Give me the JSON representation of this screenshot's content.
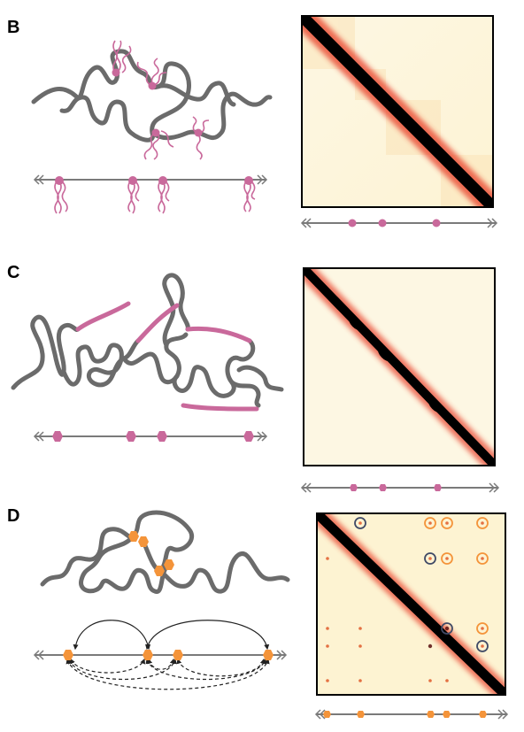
{
  "figure": {
    "panels": [
      {
        "label": "B"
      },
      {
        "label": "C"
      },
      {
        "label": "D"
      }
    ]
  },
  "colors": {
    "polymer": "#6b6b6b",
    "tether_pink": "#c9699b",
    "anchor_orange": "#f4943a",
    "axis": "#7a7a7a",
    "heatmap_bg": "#fdf6dc",
    "heatmap_diag": "#000000",
    "loop_circle_dark": "#404a66"
  },
  "icons": {
    "axis_end": "double-arrow-chevron",
    "tether": "wavy-tether",
    "anchor": "hexagon-anchor"
  }
}
